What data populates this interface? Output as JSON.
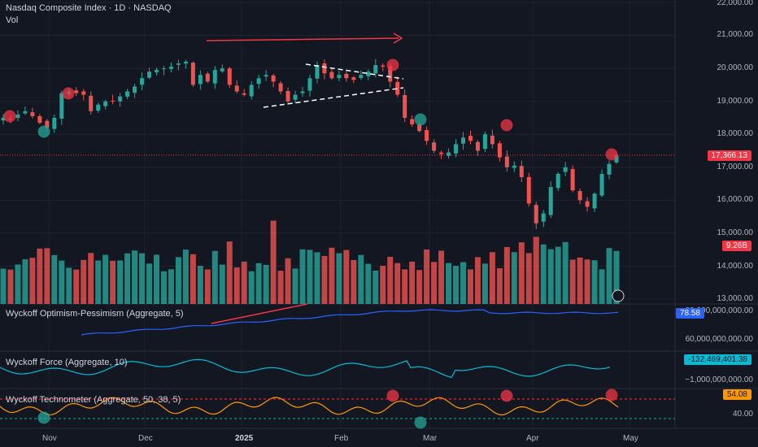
{
  "header": {
    "title": "Nasdaq Composite Index · 1D · NASDAQ",
    "volume_label": "Vol"
  },
  "price_axis": {
    "ticks": [
      "22,000.00",
      "21,000.00",
      "20,000.00",
      "19,000.00",
      "18,000.00",
      "17,000.00",
      "16,000.00",
      "15,000.00",
      "14,000.00",
      "13,000.00"
    ]
  },
  "price_tag": "17,366.13",
  "volume_tag": "9.26B",
  "indicators": {
    "optimism": {
      "title": "Wyckoff Optimism-Pessimism (Aggregate, 5)",
      "value_tag": "78.58",
      "tick_top": "80,000,000,000.00",
      "tick_mid": "60,000,000,000.00",
      "color": "#2962ff"
    },
    "force": {
      "title": "Wyckoff Force (Aggregate, 10)",
      "value_tag": "-132,469,401.38",
      "tick": "−1,000,000,000.00",
      "color": "#00bcd4"
    },
    "technometer": {
      "title": "Wyckoff Technometer (Aggregate, 50, 38, 5)",
      "value_tag": "54.08",
      "tick": "40.00",
      "color": "#ff9800"
    }
  },
  "time_axis": [
    "Nov",
    "Dec",
    "2025",
    "Feb",
    "Mar",
    "Apr",
    "May"
  ],
  "colors": {
    "up": "#26a69a",
    "down": "#ef5350",
    "background": "#131722",
    "annotation": "#f23645"
  },
  "chart_data": {
    "type": "candlestick",
    "title": "Nasdaq Composite Index · 1D · NASDAQ",
    "ylim": [
      13000,
      22000
    ],
    "price_path": [
      18500,
      18450,
      18600,
      18700,
      18550,
      18350,
      18200,
      18500,
      19250,
      19300,
      19250,
      19200,
      18700,
      18900,
      19000,
      19000,
      19150,
      19300,
      19450,
      19700,
      19900,
      19950,
      20000,
      20050,
      20150,
      20200,
      19500,
      19800,
      19600,
      19950,
      20000,
      19500,
      19300,
      19200,
      19500,
      19700,
      19800,
      19600,
      19300,
      19000,
      19200,
      19300,
      19700,
      20100,
      19850,
      19700,
      19800,
      19700,
      19650,
      19800,
      19900,
      20100,
      20050,
      19600,
      19200,
      18500,
      18300,
      18100,
      17800,
      17500,
      17400,
      17450,
      17700,
      17900,
      17800,
      17500,
      18000,
      17700,
      17300,
      17000,
      17050,
      16700,
      15900,
      15300,
      15600,
      16400,
      16800,
      17000,
      16300,
      16000,
      15800,
      16200,
      16800,
      17100,
      17366
    ]
  }
}
